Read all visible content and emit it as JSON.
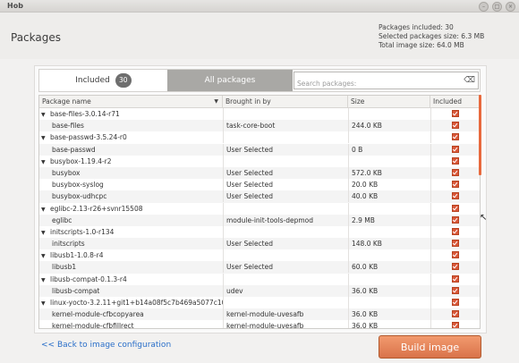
{
  "window": {
    "title": "Hob"
  },
  "header": {
    "title": "Packages",
    "packages_included": "Packages included: 30",
    "selected_size": "Selected packages size: 6.3 MB",
    "total_size": "Total image size: 64.0 MB"
  },
  "tabs": {
    "included_label": "Included",
    "included_count": "30",
    "all_label": "All packages"
  },
  "search": {
    "placeholder": "Search packages:"
  },
  "table": {
    "columns": [
      "Package name",
      "Brought in by",
      "Size",
      "Included"
    ],
    "rows": [
      {
        "type": "group",
        "name": "base-files-3.0.14-r71",
        "by": "",
        "size": "",
        "included": true
      },
      {
        "type": "child",
        "name": "base-files",
        "by": "task-core-boot",
        "size": "244.0 KB",
        "included": true
      },
      {
        "type": "group",
        "name": "base-passwd-3.5.24-r0",
        "by": "",
        "size": "",
        "included": true
      },
      {
        "type": "child",
        "name": "base-passwd",
        "by": "User Selected",
        "size": "0 B",
        "included": true
      },
      {
        "type": "group",
        "name": "busybox-1.19.4-r2",
        "by": "",
        "size": "",
        "included": true
      },
      {
        "type": "child",
        "name": "busybox",
        "by": "User Selected",
        "size": "572.0 KB",
        "included": true
      },
      {
        "type": "child",
        "name": "busybox-syslog",
        "by": "User Selected",
        "size": "20.0 KB",
        "included": true
      },
      {
        "type": "child",
        "name": "busybox-udhcpc",
        "by": "User Selected",
        "size": "40.0 KB",
        "included": true
      },
      {
        "type": "group",
        "name": "eglibc-2.13-r26+svnr15508",
        "by": "",
        "size": "",
        "included": true
      },
      {
        "type": "child",
        "name": "eglibc",
        "by": "module-init-tools-depmod",
        "size": "2.9 MB",
        "included": true
      },
      {
        "type": "group",
        "name": "initscripts-1.0-r134",
        "by": "",
        "size": "",
        "included": true
      },
      {
        "type": "child",
        "name": "initscripts",
        "by": "User Selected",
        "size": "148.0 KB",
        "included": true
      },
      {
        "type": "group",
        "name": "libusb1-1.0.8-r4",
        "by": "",
        "size": "",
        "included": true
      },
      {
        "type": "child",
        "name": "libusb1",
        "by": "User Selected",
        "size": "60.0 KB",
        "included": true
      },
      {
        "type": "group",
        "name": "libusb-compat-0.1.3-r4",
        "by": "",
        "size": "",
        "included": true
      },
      {
        "type": "child",
        "name": "libusb-compat",
        "by": "udev",
        "size": "36.0 KB",
        "included": true
      },
      {
        "type": "group",
        "name": "linux-yocto-3.2.11+git1+b14a08f5c7b469a5077c1094",
        "by": "",
        "size": "",
        "included": true
      },
      {
        "type": "child",
        "name": "kernel-module-cfbcopyarea",
        "by": "kernel-module-uvesafb",
        "size": "36.0 KB",
        "included": true
      },
      {
        "type": "child",
        "name": "kernel-module-cfbfillrect",
        "by": "kernel-module-uvesafb",
        "size": "36.0 KB",
        "included": true
      }
    ]
  },
  "footer": {
    "back_label": "<< Back to image configuration",
    "build_label": "Build image"
  },
  "colors": {
    "accent": "#e8693d",
    "link": "#2a6fc9",
    "tab_inactive": "#a9a8a5"
  }
}
